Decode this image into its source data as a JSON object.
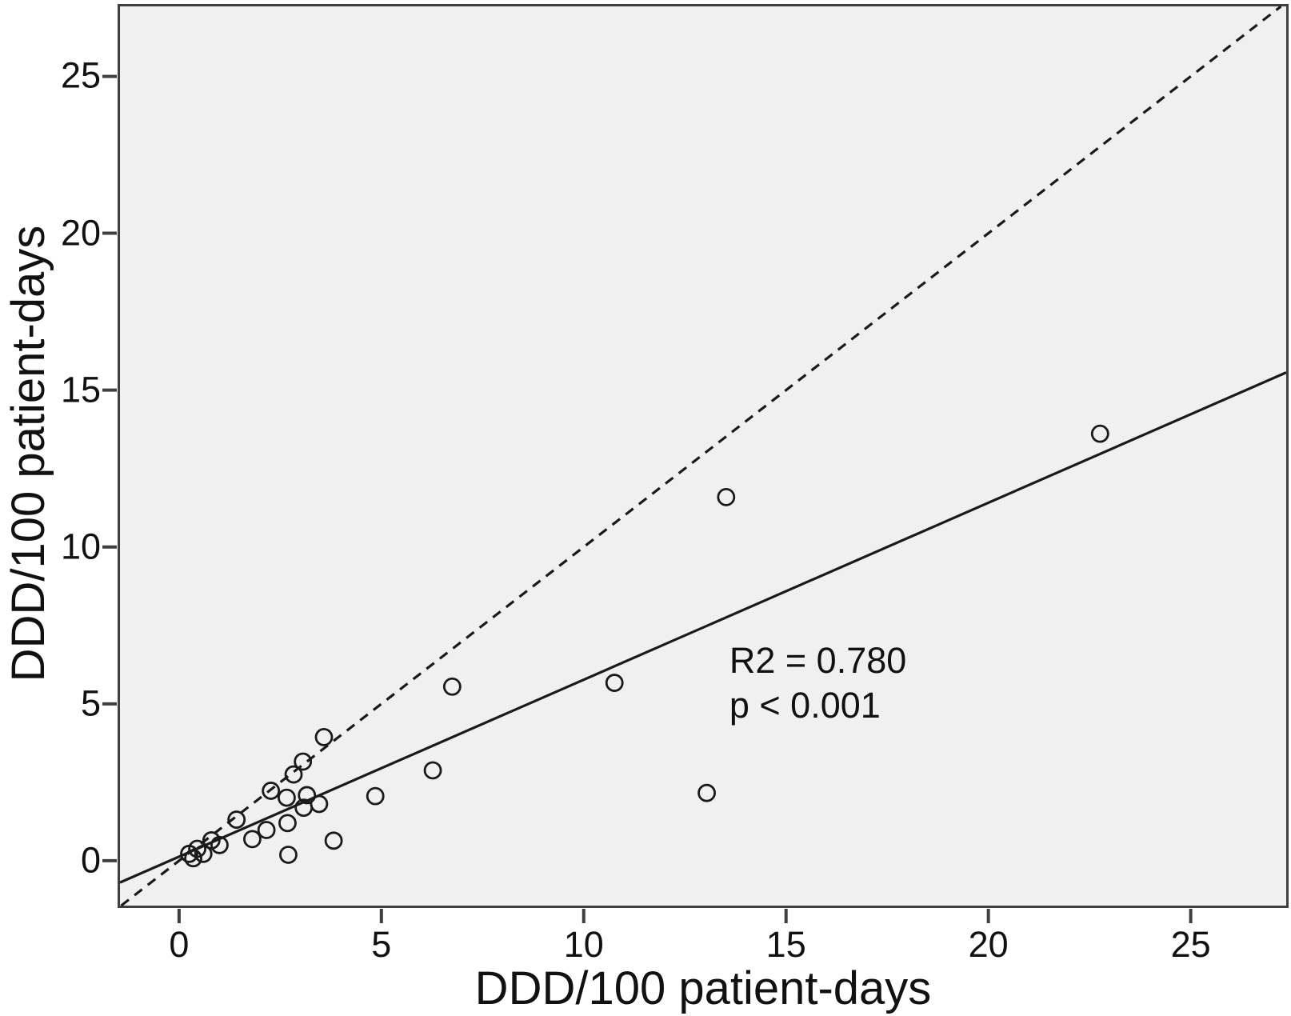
{
  "chart_data": {
    "type": "scatter",
    "xlabel": "DDD/100 patient-days",
    "ylabel": "DDD/100 patient-days",
    "xlim": [
      -1.46,
      27.36
    ],
    "ylim": [
      -1.43,
      27.23
    ],
    "xticks": [
      0,
      5,
      10,
      15,
      20,
      25
    ],
    "yticks": [
      0,
      5,
      10,
      15,
      20,
      25
    ],
    "grid": false,
    "legend": "none",
    "marker": {
      "shape": "open-circle",
      "radius": 10,
      "stroke_width": 2.8
    },
    "points": [
      [
        0.25,
        0.22
      ],
      [
        0.35,
        0.08
      ],
      [
        0.45,
        0.38
      ],
      [
        0.6,
        0.22
      ],
      [
        0.8,
        0.65
      ],
      [
        1.0,
        0.5
      ],
      [
        1.42,
        1.31
      ],
      [
        1.81,
        0.69
      ],
      [
        2.16,
        0.98
      ],
      [
        2.27,
        2.23
      ],
      [
        2.66,
        2.01
      ],
      [
        2.68,
        1.2
      ],
      [
        2.7,
        0.19
      ],
      [
        2.83,
        2.75
      ],
      [
        3.06,
        3.16
      ],
      [
        3.08,
        1.69
      ],
      [
        3.16,
        2.09
      ],
      [
        3.46,
        1.81
      ],
      [
        3.58,
        3.94
      ],
      [
        3.82,
        0.64
      ],
      [
        4.85,
        2.06
      ],
      [
        6.27,
        2.88
      ],
      [
        6.75,
        5.55
      ],
      [
        10.76,
        5.67
      ],
      [
        13.04,
        2.16
      ],
      [
        13.52,
        11.59
      ],
      [
        22.76,
        13.61
      ]
    ],
    "lines": [
      {
        "name": "identity-line",
        "style": "dashed",
        "slope": 1,
        "intercept": 0
      },
      {
        "name": "regression-line",
        "style": "solid",
        "slope": 0.564,
        "intercept": 0.13
      }
    ],
    "annotation": {
      "lines": [
        "R2 = 0.780",
        "p < 0.001"
      ],
      "x": 13.6,
      "y": 7.08
    }
  },
  "colors": {
    "plot_background": "#f0f0f0",
    "frame": "#3f3f3f",
    "marker_stroke": "#1a1a1a",
    "line_stroke": "#1a1a1a",
    "text": "#111111",
    "page_background": "#ffffff"
  }
}
